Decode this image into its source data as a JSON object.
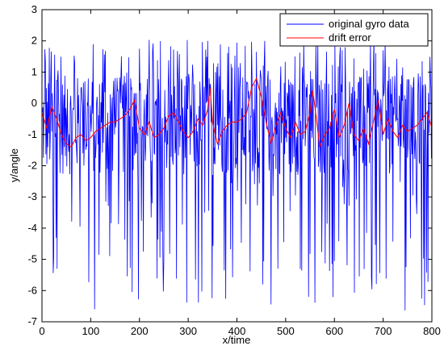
{
  "chart_data": {
    "type": "line",
    "title": "",
    "xlabel": "x/time",
    "ylabel": "y/angle",
    "xlim": [
      0,
      800
    ],
    "ylim": [
      -7,
      3
    ],
    "xticks": [
      0,
      100,
      200,
      300,
      400,
      500,
      600,
      700,
      800
    ],
    "yticks": [
      -7,
      -6,
      -5,
      -4,
      -3,
      -2,
      -1,
      0,
      1,
      2,
      3
    ],
    "grid": false,
    "legend_position": "top-right",
    "series": [
      {
        "name": "original gyro data",
        "color": "#0000ff",
        "noise_description": "dense random-like gyro noise, roughly between -6.7 and 2.1, one sample per time step",
        "x_step": 1,
        "n_points": 801,
        "envelope_min": -6.7,
        "envelope_max": 2.15,
        "typical_center": -0.7
      },
      {
        "name": "drift error",
        "color": "#ff0000",
        "x": [
          0,
          10,
          20,
          30,
          40,
          50,
          60,
          70,
          80,
          90,
          100,
          110,
          120,
          130,
          140,
          150,
          160,
          170,
          180,
          190,
          200,
          210,
          220,
          230,
          240,
          250,
          260,
          270,
          280,
          290,
          300,
          310,
          320,
          330,
          340,
          345,
          350,
          360,
          370,
          380,
          390,
          400,
          410,
          420,
          430,
          440,
          450,
          460,
          470,
          480,
          490,
          500,
          510,
          520,
          530,
          540,
          550,
          555,
          560,
          570,
          580,
          590,
          600,
          610,
          620,
          630,
          640,
          650,
          660,
          670,
          680,
          690,
          700,
          710,
          720,
          730,
          740,
          750,
          760,
          770,
          780,
          790,
          800
        ],
        "y": [
          -0.3,
          -0.8,
          -0.1,
          -0.5,
          -1.0,
          -1.3,
          -1.4,
          -1.1,
          -1.0,
          -1.2,
          -1.1,
          -0.9,
          -0.8,
          -0.7,
          -0.6,
          -0.6,
          -0.5,
          -0.4,
          -0.2,
          0.1,
          -0.8,
          -1.0,
          -0.6,
          -1.1,
          -1.0,
          -0.8,
          -0.4,
          -0.3,
          -0.6,
          -0.9,
          -1.1,
          -0.9,
          -0.5,
          -0.7,
          -0.2,
          0.5,
          -0.6,
          -1.3,
          -0.9,
          -0.7,
          -0.6,
          -0.6,
          -0.5,
          -0.3,
          0.5,
          0.8,
          0.2,
          -0.6,
          -1.3,
          -0.7,
          -0.3,
          -0.8,
          -1.1,
          -0.6,
          -1.0,
          -0.9,
          -0.3,
          0.4,
          -0.1,
          -1.4,
          -1.0,
          -0.8,
          -0.2,
          -1.1,
          -0.7,
          0.0,
          -1.0,
          -1.2,
          -0.8,
          -1.3,
          -0.6,
          0.1,
          -1.0,
          -0.5,
          -0.9,
          -1.1,
          -0.7,
          -0.9,
          -0.8,
          -0.7,
          -0.5,
          -0.3,
          -0.8
        ]
      }
    ]
  }
}
